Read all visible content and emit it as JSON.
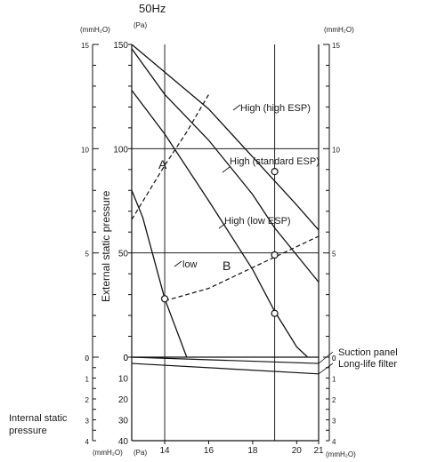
{
  "chart_data": {
    "type": "line",
    "title": "50Hz",
    "upper_axis": {
      "ylabel": "External static pressure",
      "left_unit_mm": "(mmH₂O)",
      "left_unit_pa": "(Pa)",
      "right_unit_mm": "(mmH₂O)",
      "pa_ticks": [
        0,
        50,
        100,
        150
      ],
      "mm_ticks": [
        0,
        5,
        10,
        15
      ],
      "ylim_pa": [
        0,
        150
      ],
      "grid_pa": [
        50,
        100
      ]
    },
    "lower_axis": {
      "label": "Internal static pressure",
      "pa_ticks": [
        0,
        10,
        20,
        30,
        40
      ],
      "mm_ticks": [
        0,
        1,
        2,
        3,
        4
      ]
    },
    "x_axis": {
      "unit_left_mm": "(mmH₂O)",
      "unit_left_pa": "(Pa)",
      "unit_right": "(mmH₂O)",
      "ticks": [
        14,
        16,
        18,
        20,
        21
      ],
      "xlim": [
        12.5,
        21
      ],
      "grid_x": [
        14,
        19
      ]
    },
    "series": [
      {
        "name": "High (high ESP)",
        "style": "solid",
        "x": [
          12.5,
          16,
          18,
          20,
          21
        ],
        "y": [
          150,
          119,
          96,
          73,
          61
        ]
      },
      {
        "name": "High (standard ESP)",
        "style": "solid",
        "x": [
          12.5,
          14,
          16,
          18,
          19,
          20,
          20.5
        ],
        "y": [
          128,
          107,
          75,
          42,
          22,
          5,
          0
        ]
      },
      {
        "name": "High (low ESP)",
        "style": "solid",
        "x": [
          12.5,
          14,
          16,
          18,
          19,
          21
        ],
        "y": [
          148,
          126,
          104,
          78,
          62,
          36
        ]
      },
      {
        "name": "low",
        "style": "solid",
        "x": [
          12.5,
          13,
          14,
          15
        ],
        "y": [
          80,
          67,
          28,
          0
        ]
      }
    ],
    "limit_lines": [
      {
        "label": "A",
        "style": "dashed",
        "x": [
          12.5,
          14,
          15,
          16
        ],
        "y": [
          66,
          92,
          108,
          126
        ]
      },
      {
        "label": "B",
        "style": "dashed",
        "x": [
          14,
          16,
          18,
          19,
          21
        ],
        "y": [
          27,
          33,
          43,
          48,
          58
        ]
      }
    ],
    "points": [
      {
        "x": 14,
        "y": 28
      },
      {
        "x": 19,
        "y": 89
      },
      {
        "x": 19,
        "y": 49
      },
      {
        "x": 19,
        "y": 21
      }
    ],
    "internal_losses": [
      {
        "name": "Suction panel",
        "x": [
          12.5,
          21
        ],
        "y": [
          0,
          3
        ]
      },
      {
        "name": "Long-life filter",
        "x": [
          12.5,
          21
        ],
        "y": [
          3,
          8
        ]
      }
    ],
    "region_labels": [
      "A",
      "B"
    ]
  }
}
